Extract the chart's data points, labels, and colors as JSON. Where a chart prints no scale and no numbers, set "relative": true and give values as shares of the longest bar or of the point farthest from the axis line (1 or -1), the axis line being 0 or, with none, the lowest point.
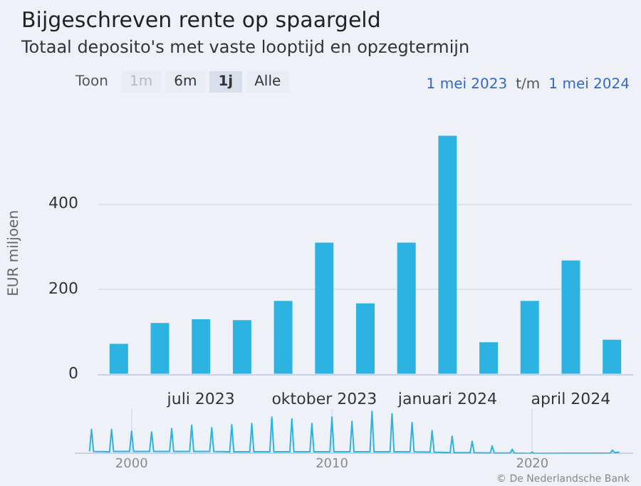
{
  "chart_data": [
    {
      "type": "bar",
      "title": "Bijgeschreven rente op spaargeld",
      "subtitle": "Totaal deposito's met vaste looptijd en opzegtermijn",
      "ylabel": "EUR miljoen",
      "categories": [
        null,
        null,
        "juli 2023",
        null,
        null,
        "oktober 2023",
        null,
        null,
        "januari 2024",
        null,
        null,
        "april 2024",
        null
      ],
      "values": [
        72,
        121,
        130,
        128,
        173,
        310,
        167,
        310,
        561,
        76,
        173,
        268,
        82
      ],
      "color": "#2cb3e2",
      "ylim": [
        0,
        570
      ],
      "yticks": [
        0,
        200,
        400
      ],
      "grid": "y",
      "legend": false,
      "annotations": [
        "Toon",
        "1m",
        "6m",
        "1j",
        "Alle",
        "1 mei 2023",
        "t/m",
        "1 mei 2024",
        "© De Nederlandsche Bank"
      ]
    },
    {
      "type": "line",
      "relative": true,
      "color": "#2cb3e2",
      "marker": "none",
      "grid": "x",
      "legend": false,
      "xlim": [
        1997.2,
        2025
      ],
      "xticks": [
        2000,
        2010,
        2020
      ],
      "x": [
        1997.9,
        1998,
        1998.1,
        1998.9,
        1999,
        1999.1,
        1999.9,
        2000,
        2000.1,
        2000.9,
        2001,
        2001.1,
        2001.9,
        2002,
        2002.1,
        2002.9,
        2003,
        2003.1,
        2003.9,
        2004,
        2004.1,
        2004.9,
        2005,
        2005.1,
        2005.9,
        2006,
        2006.1,
        2006.9,
        2007,
        2007.1,
        2007.9,
        2008,
        2008.1,
        2008.9,
        2009,
        2009.1,
        2009.9,
        2010,
        2010.1,
        2010.9,
        2011,
        2011.1,
        2011.9,
        2012,
        2012.1,
        2012.9,
        2013,
        2013.1,
        2013.9,
        2014,
        2014.1,
        2014.9,
        2015,
        2015.1,
        2015.9,
        2016,
        2016.1,
        2016.9,
        2017,
        2017.1,
        2017.9,
        2018,
        2018.1,
        2018.9,
        2019,
        2019.1,
        2019.9,
        2020,
        2020.1,
        2023.9,
        2024,
        2024.1,
        2024.35
      ],
      "values": [
        0.05,
        0.57,
        0.05,
        0.04,
        0.57,
        0.05,
        0.05,
        0.53,
        0.05,
        0.05,
        0.51,
        0.05,
        0.05,
        0.59,
        0.05,
        0.05,
        0.67,
        0.05,
        0.05,
        0.61,
        0.05,
        0.04,
        0.68,
        0.04,
        0.04,
        0.71,
        0.04,
        0.04,
        0.86,
        0.04,
        0.04,
        0.82,
        0.04,
        0.04,
        0.71,
        0.04,
        0.04,
        0.86,
        0.04,
        0.04,
        0.76,
        0.04,
        0.04,
        1,
        0.04,
        0.04,
        0.94,
        0.04,
        0.04,
        0.73,
        0.04,
        0.03,
        0.54,
        0.03,
        0.02,
        0.41,
        0.02,
        0.02,
        0.29,
        0.02,
        0.01,
        0.18,
        0.01,
        0.01,
        0.1,
        0.01,
        0,
        0.03,
        0,
        0.01,
        0.08,
        0.02,
        0.03
      ]
    }
  ]
}
